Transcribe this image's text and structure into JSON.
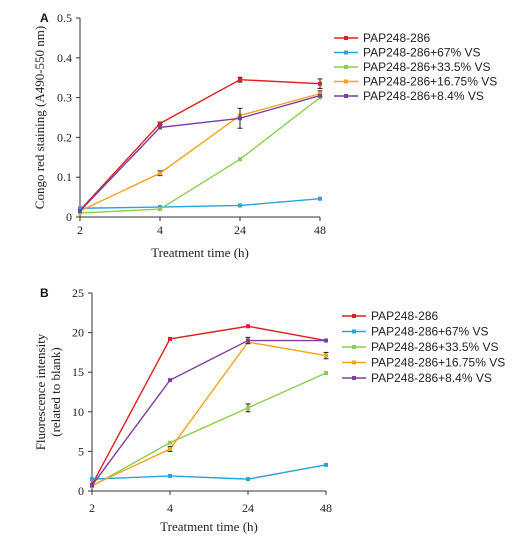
{
  "chart_data": [
    {
      "type": "line",
      "panel_label": "A",
      "categories": [
        "2",
        "4",
        "24",
        "48"
      ],
      "xlabel": "Treatment time (h)",
      "ylabel": "Congo red staining (A490-550 nm)",
      "ylim": [
        0,
        0.5
      ],
      "yticks": [
        "0",
        "0.1",
        "0.2",
        "0.3",
        "0.4",
        "0.5"
      ],
      "legend_position": "top-right",
      "series": [
        {
          "name": "PAP248-286",
          "color": "#e02020",
          "values": [
            0.017,
            0.235,
            0.345,
            0.335
          ],
          "errors": [
            0,
            0.003,
            0.006,
            0.012
          ]
        },
        {
          "name": "PAP248-286+67% VS",
          "color": "#2aa3d9",
          "values": [
            0.022,
            0.025,
            0.029,
            0.046
          ],
          "errors": [
            0,
            0,
            0,
            0
          ]
        },
        {
          "name": "PAP248-286+33.5% VS",
          "color": "#8ccf4d",
          "values": [
            0.01,
            0.02,
            0.145,
            0.3
          ],
          "errors": [
            0,
            0,
            0,
            0
          ]
        },
        {
          "name": "PAP248-286+16.75% VS",
          "color": "#f5a31b",
          "values": [
            0.015,
            0.11,
            0.255,
            0.31
          ],
          "errors": [
            0,
            0.006,
            0,
            0.007
          ]
        },
        {
          "name": "PAP248-286+8.4% VS",
          "color": "#7b3fa0",
          "values": [
            0.015,
            0.225,
            0.248,
            0.305
          ],
          "errors": [
            0,
            0,
            0.025,
            0
          ]
        }
      ]
    },
    {
      "type": "line",
      "panel_label": "B",
      "categories": [
        "2",
        "4",
        "24",
        "48"
      ],
      "xlabel": "Treatment time (h)",
      "ylabel": "Fluorescence intensity (related to blank)",
      "ylabel_lines": [
        "Fluorescence intensity",
        "(related to blank)"
      ],
      "ylim": [
        0,
        25
      ],
      "yticks": [
        "0",
        "5",
        "10",
        "15",
        "20",
        "25"
      ],
      "legend_position": "top-right",
      "series": [
        {
          "name": "PAP248-286",
          "color": "#e02020",
          "values": [
            0.8,
            19.2,
            20.8,
            19.0
          ],
          "errors": [
            0,
            0,
            0,
            0
          ]
        },
        {
          "name": "PAP248-286+67% VS",
          "color": "#2aa3d9",
          "values": [
            1.5,
            1.9,
            1.5,
            3.3
          ],
          "errors": [
            0,
            0,
            0,
            0
          ]
        },
        {
          "name": "PAP248-286+33.5% VS",
          "color": "#8ccf4d",
          "values": [
            0.6,
            6.1,
            10.5,
            14.9
          ],
          "errors": [
            0,
            0,
            0.5,
            0
          ]
        },
        {
          "name": "PAP248-286+16.75% VS",
          "color": "#f5a31b",
          "values": [
            0.7,
            5.3,
            18.8,
            17.1
          ],
          "errors": [
            0,
            0.3,
            0,
            0.4
          ]
        },
        {
          "name": "PAP248-286+8.4% VS",
          "color": "#7b3fa0",
          "values": [
            0.7,
            14.0,
            19.0,
            19.0
          ],
          "errors": [
            0,
            0,
            0.4,
            0
          ]
        }
      ]
    }
  ]
}
